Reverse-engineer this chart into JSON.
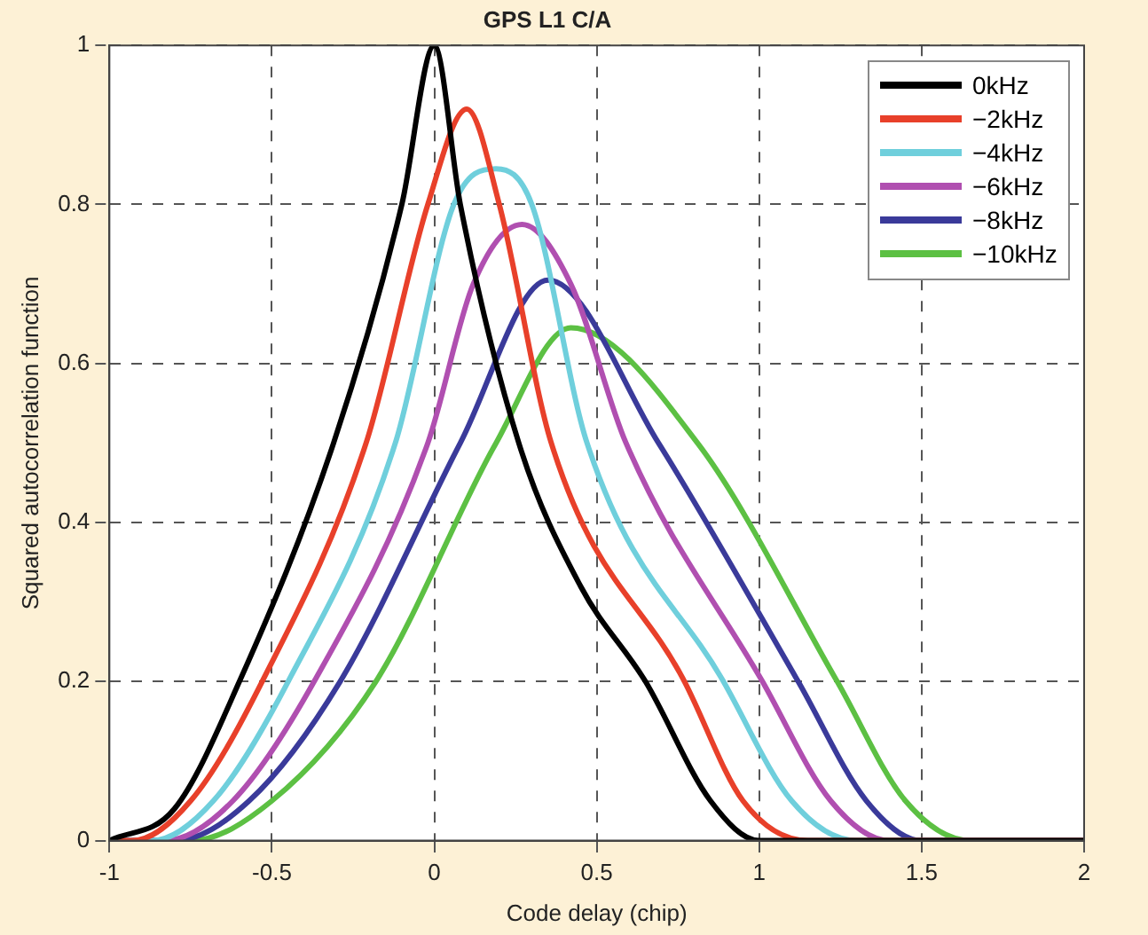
{
  "chart_data": {
    "type": "line",
    "title": "GPS L1 C/A",
    "xlabel": "Code delay (chip)",
    "ylabel": "Squared autocorrelation function",
    "xlim": [
      -1,
      2
    ],
    "xticks": [
      -1,
      -0.5,
      0,
      0.5,
      1,
      1.5,
      2
    ],
    "ylim": [
      0,
      1
    ],
    "yticks": [
      0,
      0.2,
      0.4,
      0.6,
      0.8,
      1
    ],
    "grid": true,
    "legend": "top right",
    "marker": "none",
    "line_style": "solid",
    "series": [
      {
        "name": "0kHz",
        "color": "#000000",
        "x": [
          -1,
          -0.8,
          -0.6,
          -0.31,
          -0.1,
          0,
          0.08,
          0.26,
          0.45,
          0.65,
          0.85,
          1,
          2
        ],
        "values": [
          0,
          0.04,
          0.2,
          0.5,
          0.8,
          1,
          0.8,
          0.5,
          0.32,
          0.2,
          0.05,
          0,
          0
        ]
      },
      {
        "name": "−2kHz",
        "color": "#e8402a",
        "x": [
          -1,
          -0.93,
          -0.75,
          -0.53,
          -0.21,
          -0.02,
          0.1,
          0.2,
          0.36,
          0.77,
          0.95,
          1.15,
          2
        ],
        "values": [
          0,
          0,
          0.05,
          0.2,
          0.5,
          0.8,
          0.92,
          0.8,
          0.5,
          0.2,
          0.05,
          0,
          0
        ]
      },
      {
        "name": "−4kHz",
        "color": "#6fcfdc",
        "x": [
          -1,
          -0.87,
          -0.68,
          -0.45,
          -0.12,
          0.06,
          0.19,
          0.3,
          0.47,
          0.89,
          1.1,
          1.3,
          2
        ],
        "values": [
          0,
          0,
          0.05,
          0.2,
          0.5,
          0.8,
          0.845,
          0.8,
          0.5,
          0.2,
          0.05,
          0,
          0
        ]
      },
      {
        "name": "−6kHz",
        "color": "#b04fb0",
        "x": [
          -1,
          -0.83,
          -0.62,
          -0.37,
          -0.02,
          0.12,
          0.27,
          0.42,
          0.59,
          1.01,
          1.22,
          1.4,
          2
        ],
        "values": [
          0,
          0,
          0.05,
          0.2,
          0.5,
          0.7,
          0.775,
          0.7,
          0.5,
          0.2,
          0.05,
          0,
          0
        ]
      },
      {
        "name": "−8kHz",
        "color": "#3a3a9a",
        "x": [
          -1,
          -0.8,
          -0.57,
          -0.29,
          0.08,
          0.35,
          0.69,
          1.12,
          1.33,
          1.5,
          2
        ],
        "values": [
          0,
          0,
          0.05,
          0.2,
          0.5,
          0.705,
          0.5,
          0.2,
          0.05,
          0,
          0
        ]
      },
      {
        "name": "−10kHz",
        "color": "#5cc043",
        "x": [
          -1,
          -0.75,
          -0.5,
          -0.18,
          0.19,
          0.42,
          0.81,
          1.24,
          1.45,
          1.65,
          2
        ],
        "values": [
          0,
          0,
          0.05,
          0.2,
          0.5,
          0.645,
          0.5,
          0.2,
          0.05,
          0,
          0
        ]
      }
    ]
  }
}
